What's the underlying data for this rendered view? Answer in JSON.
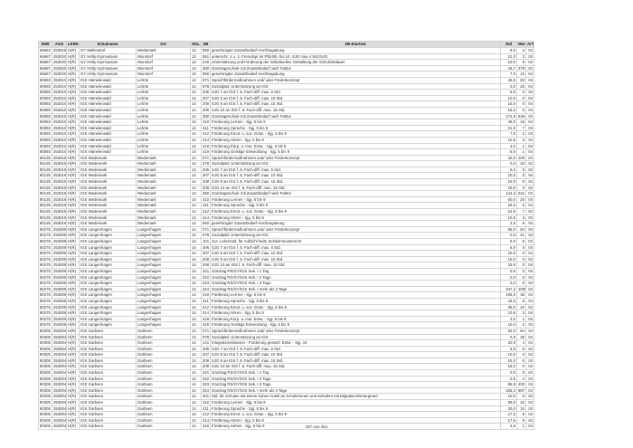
{
  "table": {
    "headers": [
      "SNR",
      "AGS",
      "LKRKZ",
      "Schulname",
      "Ort",
      "SGL",
      "ZB",
      "ZB-Klartext",
      "Std",
      "Wert",
      "ArT"
    ],
    "rows": [
      [
        "65663",
        "253018",
        "H(R)",
        "GY Mellendorf",
        "Wedemark",
        "13",
        "950",
        "genehmigter Zusatzbedarf Hochbegabung",
        "8,0",
        "4",
        "04"
      ],
      [
        "65687",
        "253020",
        "H(R)",
        "GY Hölty-Gymnasium",
        "Wunstorf",
        "13",
        "061",
        "unterschr. 1.o. 2. Fremdspr im Pflichtb. bis 10. SJG max 4 Std./SJG",
        "12,0",
        "3",
        "04"
      ],
      [
        "65687",
        "253020",
        "H(R)",
        "GY Hölty-Gymnasium",
        "Wunstorf",
        "13",
        "240",
        "Unterstützung und Förderung der individuellen Gestaltung der Schulzeitdauer",
        "10,0",
        "5",
        "04"
      ],
      [
        "65687",
        "253020",
        "H(R)",
        "GY Hölty-Gymnasium",
        "Wunstorf",
        "13",
        "380",
        "Ganztagsschule mit Zusatzbedarf nach Faktor",
        "28,7",
        "378",
        "04"
      ],
      [
        "65687",
        "253020",
        "H(R)",
        "GY Hölty-Gymnasium",
        "Wunstorf",
        "13",
        "950",
        "genehmigter Zusatzbedarf Hochbegabung",
        "7,0",
        "15",
        "04"
      ],
      [
        "80093",
        "253010",
        "H(R)",
        "IGS Hämelerwald",
        "Lehrte",
        "14",
        "071",
        "Sprachfördermaßnahmen und/ oder Förderkonzept",
        "45,0",
        "83",
        "04"
      ],
      [
        "80093",
        "253010",
        "H(R)",
        "IGS Hämelerwald",
        "Lehrte",
        "14",
        "078",
        "Sozialpäd. Unterstützung an IGS",
        "0,0",
        "25",
        "04"
      ],
      [
        "80093",
        "253010",
        "H(R)",
        "IGS Hämelerwald",
        "Lehrte",
        "14",
        "206",
        "SJG 7 an IGS f. ä. Fach-diff. max. 6 Std.",
        "6,0",
        "0",
        "04"
      ],
      [
        "80093",
        "253010",
        "H(R)",
        "IGS Hämelerwald",
        "Lehrte",
        "14",
        "207",
        "SJG 8 an IGS f. ä. Fach-diff. max. 10 Std.",
        "10,0",
        "0",
        "04"
      ],
      [
        "80093",
        "253010",
        "H(R)",
        "IGS Hämelerwald",
        "Lehrte",
        "14",
        "208",
        "SJG 9 an IGS f. ä. Fach-diff. max. 15 Std.",
        "15,0",
        "0",
        "04"
      ],
      [
        "80093",
        "253010",
        "H(R)",
        "IGS Hämelerwald",
        "Lehrte",
        "14",
        "209",
        "SJG 10 an IGS f. ä. Fach-diff. max. 15 Std.",
        "15,0",
        "0",
        "04"
      ],
      [
        "80093",
        "253010",
        "H(R)",
        "IGS Hämelerwald",
        "Lehrte",
        "14",
        "380",
        "Ganztagsschule mit Zusatzbedarf nach Faktor",
        "172,5",
        "646",
        "04"
      ],
      [
        "80093",
        "253010",
        "H(R)",
        "IGS Hämelerwald",
        "Lehrte",
        "14",
        "410",
        "Förderung Lernen  - Sjg. 5 bis 9",
        "48,0",
        "16",
        "04"
      ],
      [
        "80093",
        "253010",
        "H(R)",
        "IGS Hämelerwald",
        "Lehrte",
        "14",
        "411",
        "Förderung Sprache  - Sjg. 5 bis 9",
        "21,0",
        "7",
        "04"
      ],
      [
        "80093",
        "253010",
        "H(R)",
        "IGS Hämelerwald",
        "Lehrte",
        "14",
        "412",
        "Förderung Emot. u. soz. Entw.  - Sjg. 5 bis 9",
        "7,0",
        "2",
        "04"
      ],
      [
        "80093",
        "253010",
        "H(R)",
        "IGS Hämelerwald",
        "Lehrte",
        "14",
        "414",
        "Förderung Hören  - Sjg. 5 bis 9",
        "10,5",
        "3",
        "04"
      ],
      [
        "80093",
        "253010",
        "H(R)",
        "IGS Hämelerwald",
        "Lehrte",
        "14",
        "418",
        "Förderung Körp. u. mot. Entw.  - Sjg. 5 bis 9",
        "4,0",
        "1",
        "04"
      ],
      [
        "80093",
        "253010",
        "H(R)",
        "IGS Hämelerwald",
        "Lehrte",
        "14",
        "419",
        "Förderung Geistige Entwicklung  - Sjg. 5 bis 9",
        "5,0",
        "1",
        "04"
      ],
      [
        "80135",
        "253018",
        "H(R)",
        "IGS Wedemark",
        "Wedemark",
        "14",
        "071",
        "Sprachfördermaßnahmen und/ oder Förderkonzept",
        "40,0",
        "100",
        "04"
      ],
      [
        "80135",
        "253018",
        "H(R)",
        "IGS Wedemark",
        "Wedemark",
        "14",
        "078",
        "Sozialpäd. Unterstützung an IGS",
        "0,0",
        "34",
        "04"
      ],
      [
        "80135",
        "253018",
        "H(R)",
        "IGS Wedemark",
        "Wedemark",
        "14",
        "206",
        "SJG 7 an IGS f. ä. Fach-diff. max. 6 Std.",
        "6,0",
        "0",
        "04"
      ],
      [
        "80135",
        "253018",
        "H(R)",
        "IGS Wedemark",
        "Wedemark",
        "14",
        "207",
        "SJG 8 an IGS f. ä. Fach-diff. max. 10 Std.",
        "10,0",
        "0",
        "04"
      ],
      [
        "80135",
        "253018",
        "H(R)",
        "IGS Wedemark",
        "Wedemark",
        "14",
        "208",
        "SJG 9 an IGS f. ä. Fach-diff. max. 15 Std.",
        "15,0",
        "0",
        "04"
      ],
      [
        "80135",
        "253018",
        "H(R)",
        "IGS Wedemark",
        "Wedemark",
        "14",
        "209",
        "SJG 10 an IGS f. ä. Fach-diff. max. 15 Std.",
        "15,0",
        "0",
        "04"
      ],
      [
        "80135",
        "253018",
        "H(R)",
        "IGS Wedemark",
        "Wedemark",
        "14",
        "380",
        "Ganztagsschule mit Zusatzbedarf nach Faktor",
        "144,3",
        "621",
        "04"
      ],
      [
        "80135",
        "253018",
        "H(R)",
        "IGS Wedemark",
        "Wedemark",
        "14",
        "410",
        "Förderung Lernen  - Sjg. 5 bis 9",
        "60,0",
        "20",
        "04"
      ],
      [
        "80135",
        "253018",
        "H(R)",
        "IGS Wedemark",
        "Wedemark",
        "14",
        "411",
        "Förderung Sprache  - Sjg. 5 bis 9",
        "18,0",
        "6",
        "04"
      ],
      [
        "80135",
        "253018",
        "H(R)",
        "IGS Wedemark",
        "Wedemark",
        "14",
        "412",
        "Förderung Emot. u. soz. Entw.  - Sjg. 5 bis 9",
        "24,5",
        "7",
        "04"
      ],
      [
        "80135",
        "253018",
        "H(R)",
        "IGS Wedemark",
        "Wedemark",
        "14",
        "414",
        "Förderung Hören  - Sjg. 5 bis 9",
        "10,5",
        "3",
        "04"
      ],
      [
        "80135",
        "253018",
        "H(R)",
        "IGS Wedemark",
        "Wedemark",
        "14",
        "950",
        "genehmigter Zusatzbedarf Hochbegabung",
        "2,0",
        "6",
        "04"
      ],
      [
        "80275",
        "253009",
        "H(R)",
        "IGS Langenhagen",
        "Langenhagen",
        "14",
        "071",
        "Sprachfördermaßnahmen und/ oder Förderkonzept",
        "65,0",
        "94",
        "04"
      ],
      [
        "80275",
        "253009",
        "H(R)",
        "IGS Langenhagen",
        "Langenhagen",
        "14",
        "078",
        "Sozialpäd. Unterstützung an IGS",
        "0,0",
        "41",
        "04"
      ],
      [
        "80275",
        "253009",
        "H(R)",
        "IGS Langenhagen",
        "Langenhagen",
        "14",
        "101",
        "zus. Lehrerstd. für Aufsicht beim Schwimmunterricht",
        "6,0",
        "6",
        "04"
      ],
      [
        "80275",
        "253009",
        "H(R)",
        "IGS Langenhagen",
        "Langenhagen",
        "14",
        "206",
        "SJG 7 an IGS f. ä. Fach-diff. max. 6 Std.",
        "6,0",
        "0",
        "04"
      ],
      [
        "80275",
        "253009",
        "H(R)",
        "IGS Langenhagen",
        "Langenhagen",
        "14",
        "207",
        "SJG 8 an IGS f. ä. Fach-diff. max. 10 Std.",
        "10,0",
        "0",
        "04"
      ],
      [
        "80275",
        "253009",
        "H(R)",
        "IGS Langenhagen",
        "Langenhagen",
        "14",
        "208",
        "SJG 9 an IGS f. ä. Fach-diff. max. 15 Std.",
        "15,0",
        "0",
        "04"
      ],
      [
        "80275",
        "253009",
        "H(R)",
        "IGS Langenhagen",
        "Langenhagen",
        "14",
        "209",
        "SJG 10 an IGS f. ä. Fach-diff. max. 15 Std.",
        "15,0",
        "0",
        "04"
      ],
      [
        "80275",
        "253009",
        "H(R)",
        "IGS Langenhagen",
        "Langenhagen",
        "14",
        "321",
        "Ganztag RS/GY/IGS Sek. I 1 Tag",
        "0,0",
        "0",
        "04"
      ],
      [
        "80275",
        "253009",
        "H(R)",
        "IGS Langenhagen",
        "Langenhagen",
        "14",
        "322",
        "Ganztag RS/GY/IGS Sek. I 2 Tage",
        "0,0",
        "0",
        "04"
      ],
      [
        "80275",
        "253009",
        "H(R)",
        "IGS Langenhagen",
        "Langenhagen",
        "14",
        "323",
        "Ganztag RS/GY/IGS Sek. I 3 Tage",
        "0,0",
        "0",
        "04"
      ],
      [
        "80275",
        "253009",
        "H(R)",
        "IGS Langenhagen",
        "Langenhagen",
        "14",
        "324",
        "Ganztag RS/GY/IGS Sek. I mehr als 3 Tage",
        "347,2",
        "1009",
        "04"
      ],
      [
        "80275",
        "253009",
        "H(R)",
        "IGS Langenhagen",
        "Langenhagen",
        "14",
        "410",
        "Förderung Lernen  - Sjg. 5 bis 9",
        "105,0",
        "35",
        "04"
      ],
      [
        "80275",
        "253009",
        "H(R)",
        "IGS Langenhagen",
        "Langenhagen",
        "14",
        "411",
        "Förderung Sprache  - Sjg. 5 bis 9",
        "18,0",
        "6",
        "04"
      ],
      [
        "80275",
        "253009",
        "H(R)",
        "IGS Langenhagen",
        "Langenhagen",
        "14",
        "412",
        "Förderung Emot. u. soz. Entw.  - Sjg. 5 bis 9",
        "35,0",
        "10",
        "04"
      ],
      [
        "80275",
        "253009",
        "H(R)",
        "IGS Langenhagen",
        "Langenhagen",
        "14",
        "414",
        "Förderung Hören  - Sjg. 5 bis 9",
        "10,5",
        "3",
        "04"
      ],
      [
        "80275",
        "253009",
        "H(R)",
        "IGS Langenhagen",
        "Langenhagen",
        "14",
        "418",
        "Förderung Körp. u. mot. Entw.  - Sjg. 5 bis 9",
        "4,0",
        "1",
        "04"
      ],
      [
        "80275",
        "253009",
        "H(R)",
        "IGS Langenhagen",
        "Langenhagen",
        "14",
        "419",
        "Förderung Geistige Entwicklung  - Sjg. 5 bis 9",
        "10,0",
        "2",
        "04"
      ],
      [
        "80305",
        "253004",
        "H(R)",
        "IGS Garbsen",
        "Garbsen",
        "14",
        "071",
        "Sprachfördermaßnahmen und/ oder Förderkonzept",
        "84,0",
        "84",
        "04"
      ],
      [
        "80305",
        "253004",
        "H(R)",
        "IGS Garbsen",
        "Garbsen",
        "14",
        "078",
        "Sozialpäd. Unterstützung an IGS",
        "0,0",
        "49",
        "04"
      ],
      [
        "80305",
        "253004",
        "H(R)",
        "IGS Garbsen",
        "Garbsen",
        "14",
        "141",
        "Integrationsklassen - Förderung gesetzl. Entw. - Sjg. 10",
        "20,0",
        "4",
        "04"
      ],
      [
        "80305",
        "253004",
        "H(R)",
        "IGS Garbsen",
        "Garbsen",
        "14",
        "206",
        "SJG 7 an IGS f. ä. Fach-diff. max. 6 Std.",
        "6,0",
        "0",
        "04"
      ],
      [
        "80305",
        "253004",
        "H(R)",
        "IGS Garbsen",
        "Garbsen",
        "14",
        "207",
        "SJG 8 an IGS f. ä. Fach-diff. max. 10 Std.",
        "10,0",
        "0",
        "04"
      ],
      [
        "80305",
        "253004",
        "H(R)",
        "IGS Garbsen",
        "Garbsen",
        "14",
        "208",
        "SJG 9 an IGS f. ä. Fach-diff. max. 15 Std.",
        "15,0",
        "0",
        "04"
      ],
      [
        "80305",
        "253004",
        "H(R)",
        "IGS Garbsen",
        "Garbsen",
        "14",
        "209",
        "SJG 10 an IGS f. ä. Fach-diff. max. 15 Std.",
        "15,0",
        "0",
        "04"
      ],
      [
        "80305",
        "253004",
        "H(R)",
        "IGS Garbsen",
        "Garbsen",
        "14",
        "321",
        "Ganztag RS/GY/IGS Sek. I 1 Tag",
        "0,0",
        "0",
        "04"
      ],
      [
        "80305",
        "253004",
        "H(R)",
        "IGS Garbsen",
        "Garbsen",
        "14",
        "322",
        "Ganztag RS/GY/IGS Sek. I 2 Tage",
        "0,6",
        "4",
        "04"
      ],
      [
        "80305",
        "253004",
        "H(R)",
        "IGS Garbsen",
        "Garbsen",
        "14",
        "323",
        "Ganztag RS/GY/IGS Sek. I 3 Tage",
        "95,9",
        "400",
        "04"
      ],
      [
        "80305",
        "253004",
        "H(R)",
        "IGS Garbsen",
        "Garbsen",
        "14",
        "324",
        "Ganztag RS/GY/IGS Sek. I mehr als 3 Tage",
        "336,3",
        "987",
        "04"
      ],
      [
        "80305",
        "253004",
        "H(R)",
        "IGS Garbsen",
        "Garbsen",
        "14",
        "401",
        "Std. für Schulen mit einem hohen Anteil an Schülerinnen und Schülern mit Migrationshintergrund",
        "10,0",
        "0",
        "04"
      ],
      [
        "80305",
        "253004",
        "H(R)",
        "IGS Garbsen",
        "Garbsen",
        "14",
        "410",
        "Förderung Lernen  - Sjg. 5 bis 9",
        "96,0",
        "32",
        "04"
      ],
      [
        "80305",
        "253004",
        "H(R)",
        "IGS Garbsen",
        "Garbsen",
        "14",
        "411",
        "Förderung Sprache  - Sjg. 5 bis 9",
        "30,0",
        "10",
        "04"
      ],
      [
        "80305",
        "253004",
        "H(R)",
        "IGS Garbsen",
        "Garbsen",
        "14",
        "412",
        "Förderung Emot. u. soz. Entw.  - Sjg. 5 bis 9",
        "17,5",
        "5",
        "04"
      ],
      [
        "80305",
        "253004",
        "H(R)",
        "IGS Garbsen",
        "Garbsen",
        "14",
        "414",
        "Förderung Hören  - Sjg. 5 bis 9",
        "17,5",
        "5",
        "04"
      ],
      [
        "80305",
        "253004",
        "H(R)",
        "IGS Garbsen",
        "Garbsen",
        "14",
        "416",
        "Förderung Sehen - Sjg. 5 bis 9",
        "3,5",
        "1",
        "04"
      ]
    ]
  },
  "footer": {
    "page": "187 von 451"
  }
}
